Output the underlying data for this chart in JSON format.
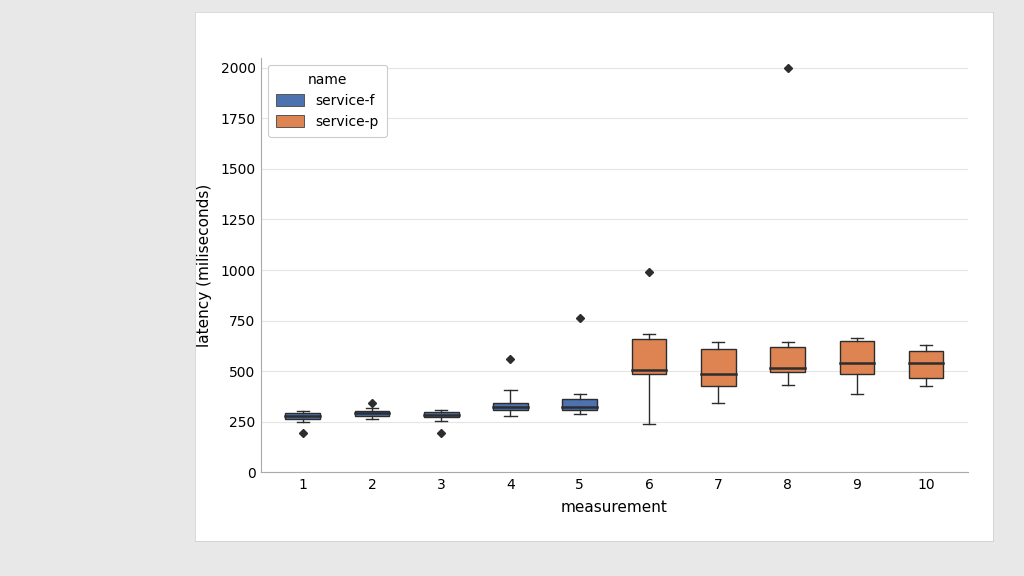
{
  "xlabel": "measurement",
  "ylabel": "latency (miliseconds)",
  "ylim": [
    0,
    2050
  ],
  "yticks": [
    0,
    250,
    500,
    750,
    1000,
    1250,
    1500,
    1750,
    2000
  ],
  "xticks": [
    1,
    2,
    3,
    4,
    5,
    6,
    7,
    8,
    9,
    10
  ],
  "service_f_color": "#4C72B0",
  "service_p_color": "#DD8452",
  "fig_bg_color": "#E8E8E8",
  "panel_bg_color": "#FFFFFF",
  "ax_bg_color": "#FFFFFF",
  "legend_title": "name",
  "boxes": {
    "1": {
      "q1": 265,
      "median": 278,
      "q3": 292,
      "whislo": 248,
      "whishi": 305,
      "fliers": [
        195
      ]
    },
    "2": {
      "q1": 278,
      "median": 292,
      "q3": 305,
      "whislo": 262,
      "whishi": 318,
      "fliers": [
        345
      ]
    },
    "3": {
      "q1": 272,
      "median": 283,
      "q3": 296,
      "whislo": 255,
      "whishi": 306,
      "fliers": [
        192
      ]
    },
    "4": {
      "q1": 308,
      "median": 325,
      "q3": 345,
      "whislo": 278,
      "whishi": 405,
      "fliers": [
        560
      ]
    },
    "5": {
      "q1": 308,
      "median": 322,
      "q3": 362,
      "whislo": 290,
      "whishi": 388,
      "fliers": [
        762
      ]
    },
    "6": {
      "q1": 488,
      "median": 508,
      "q3": 658,
      "whislo": 238,
      "whishi": 682,
      "fliers": [
        988
      ]
    },
    "7": {
      "q1": 428,
      "median": 488,
      "q3": 608,
      "whislo": 342,
      "whishi": 642,
      "fliers": []
    },
    "8": {
      "q1": 498,
      "median": 518,
      "q3": 618,
      "whislo": 432,
      "whishi": 642,
      "fliers": [
        2000
      ]
    },
    "9": {
      "q1": 488,
      "median": 542,
      "q3": 648,
      "whislo": 388,
      "whishi": 662,
      "fliers": []
    },
    "10": {
      "q1": 468,
      "median": 538,
      "q3": 598,
      "whislo": 428,
      "whishi": 628,
      "fliers": []
    }
  },
  "box_width": 0.5,
  "linewidth": 1.0,
  "flier_marker": "D",
  "flier_markersize": 4
}
